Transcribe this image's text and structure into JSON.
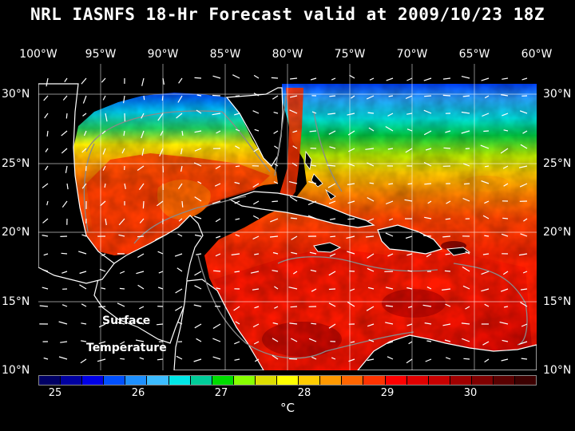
{
  "title": "NRL IASNFS  18-Hr Forecast valid at 2009/10/23 18Z",
  "lon_labels": [
    "100°W",
    "95°W",
    "90°W",
    "85°W",
    "80°W",
    "75°W",
    "70°W",
    "65°W",
    "60°W"
  ],
  "lat_labels": [
    "30°N",
    "25°N",
    "20°N",
    "15°N",
    "10°N"
  ],
  "map": {
    "label_line1": "Surface",
    "label_line2": "Temperature",
    "lon_range": [
      -100,
      -60
    ],
    "lat_range": [
      10,
      31
    ],
    "grid": true,
    "vectors": true,
    "land_color": "#000000",
    "coast_color": "#ffffff",
    "isobath_color": "#888888"
  },
  "colorbar": {
    "ticks": [
      "25",
      "26",
      "27",
      "28",
      "29",
      "30"
    ],
    "range": [
      24.6,
      30.8
    ],
    "units": "°C",
    "colors": [
      "#000064",
      "#0000a0",
      "#0000e6",
      "#0050ff",
      "#1e90ff",
      "#3cbcff",
      "#00e6e6",
      "#00cc99",
      "#00dd00",
      "#88ff00",
      "#dddd00",
      "#ffff00",
      "#ffcc00",
      "#ff9900",
      "#ff6600",
      "#ff3300",
      "#ff0000",
      "#e00000",
      "#c80000",
      "#a00000",
      "#800000",
      "#5a0000",
      "#3c0000"
    ]
  }
}
